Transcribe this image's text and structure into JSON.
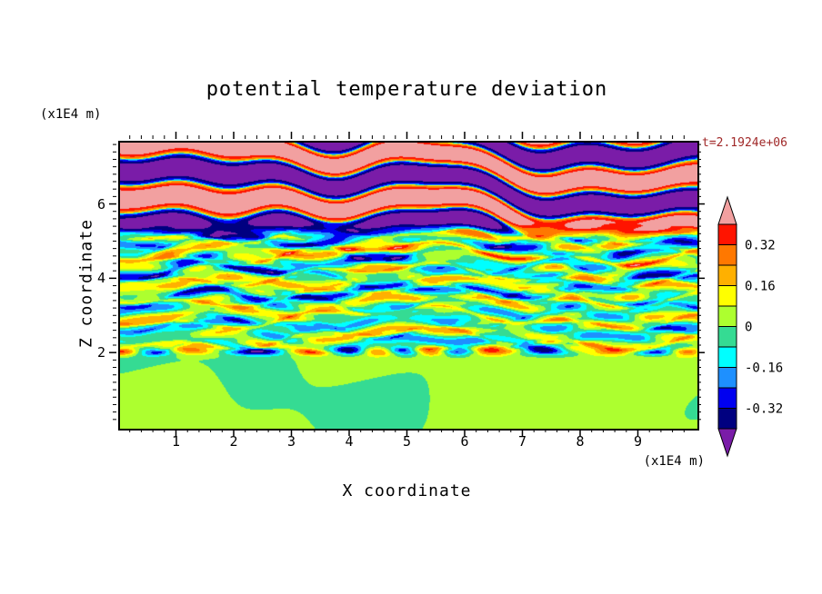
{
  "chart_data": {
    "type": "heatmap",
    "title": "potential temperature deviation",
    "xlabel": "X coordinate",
    "ylabel": "Z coordinate",
    "x_units_label": "(x1E4 m)",
    "y_units_label": "(x1E4 m)",
    "time_annotation": "t=2.1924e+06",
    "annotation_color": "#A02828",
    "frame_color": "#000000",
    "xlim": [
      0,
      10
    ],
    "zlim": [
      0,
      7.7
    ],
    "xticks": [
      1,
      2,
      3,
      4,
      5,
      6,
      7,
      8,
      9
    ],
    "yticks": [
      2,
      4,
      6
    ],
    "minor_tick_step": 0.2,
    "grid": false,
    "legend_position": "right-colorbar",
    "colorbar": {
      "tick_labels": [
        "0.32",
        "0.16",
        "0",
        "-0.16",
        "-0.32"
      ],
      "levels": [
        -0.4,
        -0.32,
        -0.24,
        -0.16,
        -0.08,
        0,
        0.08,
        0.16,
        0.24,
        0.32,
        0.4
      ],
      "colors_low_to_high": [
        "#7A1CA8",
        "#000080",
        "#0000F0",
        "#1E90FF",
        "#00FFFF",
        "#35DB93",
        "#ADFF2F",
        "#FFFF00",
        "#FFB000",
        "#FF7800",
        "#FF1400",
        "#F2A0A0"
      ]
    },
    "field_description": "Stratified turbulence snapshot: near-zero deviation (green, 0 to 0.08 blobs) below z=2; thin layered structures of roughly -0.3 to +0.3 (cyan/green with red-orange streaks) for 2<z<5; saturated wide bands beyond +/-0.4 (salmon pink and purple) with thin rainbow transition edges above z=5.",
    "field_model": {
      "bottom_amplitude": 0.055,
      "mid_amplitudes": [
        0.16,
        0.1
      ],
      "top_amplitude": 0.52,
      "bottom_top_of_layer": 2.0,
      "mid_top_of_layer": 5.2,
      "mid_vertical_wavenumbers": [
        8.5,
        14.0
      ],
      "top_vertical_wavenumber": 4.6,
      "sharpen_exponent": 0.4
    }
  }
}
